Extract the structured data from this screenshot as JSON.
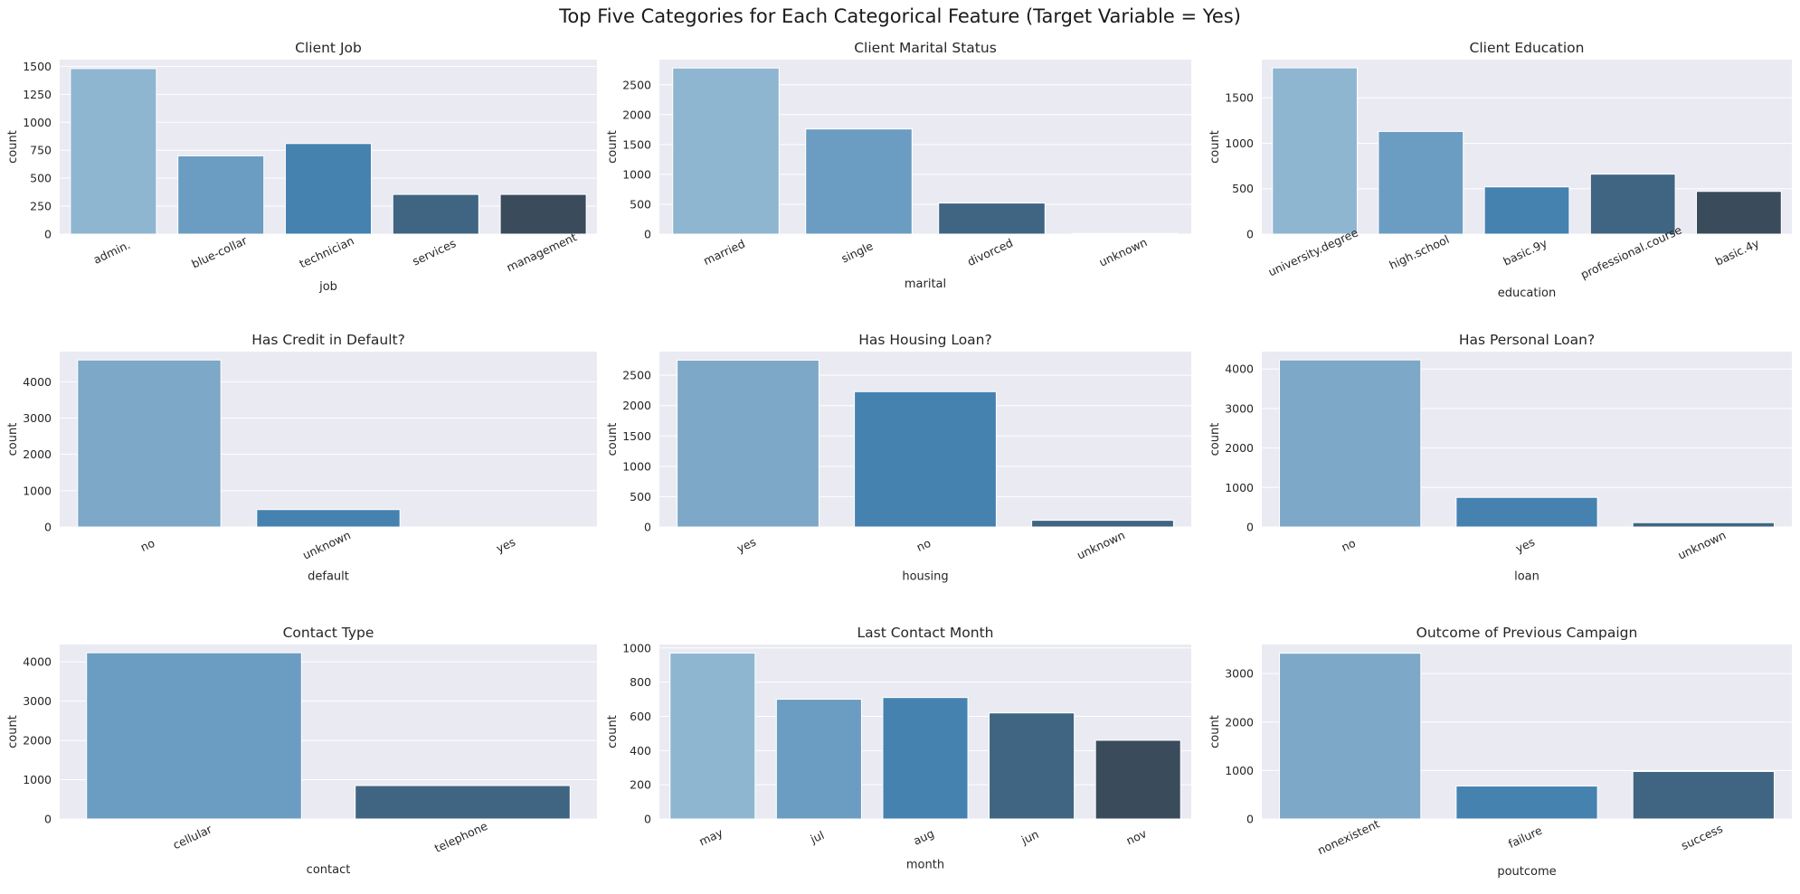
{
  "figure": {
    "title": "Top Five Categories for Each Categorical Feature (Target Variable = Yes)"
  },
  "colors": {
    "background": "#eaeaf2",
    "grid": "#ffffff",
    "palette5": [
      "#8fb6d1",
      "#6a9dc1",
      "#4682b0",
      "#3f6582",
      "#3a4b5c"
    ],
    "palette3": [
      "#7da8c7",
      "#4682b0",
      "#3f6582"
    ],
    "palette2": [
      "#6a9dc1",
      "#3f6582"
    ]
  },
  "chart_data": [
    {
      "type": "bar",
      "title": "Client Job",
      "xlabel": "job",
      "ylabel": "count",
      "categories": [
        "admin.",
        "blue-collar",
        "technician",
        "services",
        "management"
      ],
      "values": [
        1480,
        700,
        810,
        355,
        355
      ],
      "ylim": [
        0,
        1560
      ],
      "yticks": [
        0,
        250,
        500,
        750,
        1000,
        1250,
        1500
      ],
      "grid": true
    },
    {
      "type": "bar",
      "title": "Client Marital Status",
      "xlabel": "marital",
      "ylabel": "count",
      "categories": [
        "married",
        "single",
        "divorced",
        "unknown"
      ],
      "values": [
        2780,
        1760,
        520,
        10
      ],
      "ylim": [
        0,
        2920
      ],
      "yticks": [
        0,
        500,
        1000,
        1500,
        2000,
        2500
      ],
      "grid": true
    },
    {
      "type": "bar",
      "title": "Client Education",
      "xlabel": "education",
      "ylabel": "count",
      "categories": [
        "university.degree",
        "high.school",
        "basic.9y",
        "professional.course",
        "basic.4y"
      ],
      "values": [
        1830,
        1130,
        520,
        660,
        470
      ],
      "ylim": [
        0,
        1920
      ],
      "yticks": [
        0,
        500,
        1000,
        1500
      ],
      "grid": true
    },
    {
      "type": "bar",
      "title": "Has Credit in Default?",
      "xlabel": "default",
      "ylabel": "count",
      "categories": [
        "no",
        "unknown",
        "yes"
      ],
      "values": [
        4600,
        480,
        0
      ],
      "ylim": [
        0,
        4830
      ],
      "yticks": [
        0,
        1000,
        2000,
        3000,
        4000
      ],
      "grid": true
    },
    {
      "type": "bar",
      "title": "Has Housing Loan?",
      "xlabel": "housing",
      "ylabel": "count",
      "categories": [
        "yes",
        "no",
        "unknown"
      ],
      "values": [
        2750,
        2230,
        110
      ],
      "ylim": [
        0,
        2890
      ],
      "yticks": [
        0,
        500,
        1000,
        1500,
        2000,
        2500
      ],
      "grid": true
    },
    {
      "type": "bar",
      "title": "Has Personal Loan?",
      "xlabel": "loan",
      "ylabel": "count",
      "categories": [
        "no",
        "yes",
        "unknown"
      ],
      "values": [
        4230,
        750,
        110
      ],
      "ylim": [
        0,
        4440
      ],
      "yticks": [
        0,
        1000,
        2000,
        3000,
        4000
      ],
      "grid": true
    },
    {
      "type": "bar",
      "title": "Contact Type",
      "xlabel": "contact",
      "ylabel": "count",
      "categories": [
        "cellular",
        "telephone"
      ],
      "values": [
        4230,
        850
      ],
      "ylim": [
        0,
        4440
      ],
      "yticks": [
        0,
        1000,
        2000,
        3000,
        4000
      ],
      "grid": true
    },
    {
      "type": "bar",
      "title": "Last Contact Month",
      "xlabel": "month",
      "ylabel": "count",
      "categories": [
        "may",
        "jul",
        "aug",
        "jun",
        "nov"
      ],
      "values": [
        970,
        700,
        710,
        620,
        460
      ],
      "ylim": [
        0,
        1020
      ],
      "yticks": [
        0,
        200,
        400,
        600,
        800,
        1000
      ],
      "grid": true
    },
    {
      "type": "bar",
      "title": "Outcome of Previous Campaign",
      "xlabel": "poutcome",
      "ylabel": "count",
      "categories": [
        "nonexistent",
        "failure",
        "success"
      ],
      "values": [
        3420,
        680,
        980
      ],
      "ylim": [
        0,
        3600
      ],
      "yticks": [
        0,
        1000,
        2000,
        3000
      ],
      "grid": true
    }
  ]
}
